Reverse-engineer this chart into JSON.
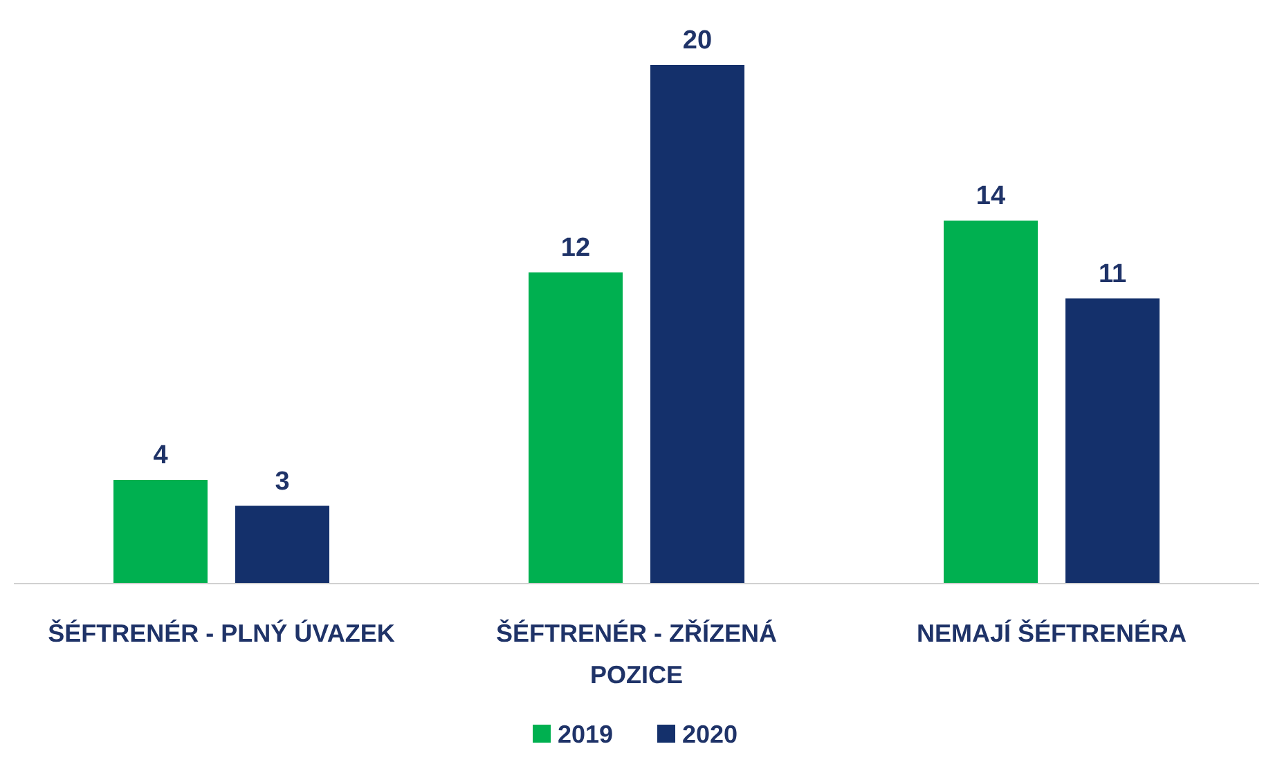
{
  "chart_data": {
    "type": "bar",
    "categories": [
      "ŠÉFTRENÉR - PLNÝ ÚVAZEK",
      "ŠÉFTRENÉR - ZŘÍZENÁ POZICE",
      "NEMAJÍ ŠÉFTRENÉRA"
    ],
    "series": [
      {
        "name": "2019",
        "color": "#00b050",
        "values": [
          4,
          12,
          14
        ]
      },
      {
        "name": "2020",
        "color": "#14306b",
        "values": [
          3,
          20,
          11
        ]
      }
    ],
    "data_labels": true,
    "legend": "bottom"
  }
}
